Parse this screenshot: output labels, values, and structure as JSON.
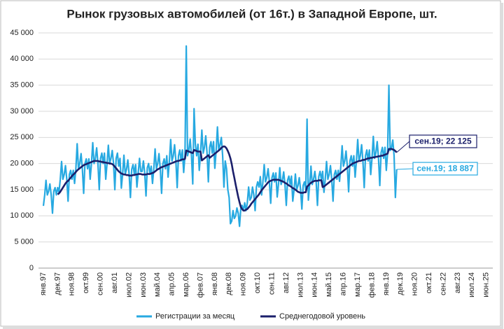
{
  "chart_data": {
    "type": "line",
    "title": "Рынок грузовых автомобилей (от 16т.) в Западной Европе, шт.",
    "categories": [
      "янв.97",
      null,
      null,
      null,
      null,
      null,
      null,
      null,
      null,
      null,
      null,
      "дек.97",
      null,
      null,
      null,
      null,
      null,
      null,
      null,
      null,
      null,
      null,
      "ноя.98",
      null,
      null,
      null,
      null,
      null,
      null,
      null,
      null,
      null,
      null,
      "окт.99",
      null,
      null,
      null,
      null,
      null,
      null,
      null,
      null,
      null,
      null,
      "сен.00",
      null,
      null,
      null,
      null,
      null,
      null,
      null,
      null,
      null,
      null,
      "авг.01",
      null,
      null,
      null,
      null,
      null,
      null,
      null,
      null,
      null,
      null,
      "июл.02",
      null,
      null,
      null,
      null,
      null,
      null,
      null,
      null,
      null,
      null,
      "июн.03",
      null,
      null,
      null,
      null,
      null,
      null,
      null,
      null,
      null,
      null,
      "май.04",
      null,
      null,
      null,
      null,
      null,
      null,
      null,
      null,
      null,
      null,
      "апр.05",
      null,
      null,
      null,
      null,
      null,
      null,
      null,
      null,
      null,
      null,
      "мар.06",
      null,
      null,
      null,
      null,
      null,
      null,
      null,
      null,
      null,
      null,
      "фев.07",
      null,
      null,
      null,
      null,
      null,
      null,
      null,
      null,
      null,
      null,
      "янв.08",
      null,
      null,
      null,
      null,
      null,
      null,
      null,
      null,
      null,
      null,
      "дек.08",
      null,
      null,
      null,
      null,
      null,
      null,
      null,
      null,
      null,
      null,
      "ноя.09",
      null,
      null,
      null,
      null,
      null,
      null,
      null,
      null,
      null,
      null,
      "окт.10",
      null,
      null,
      null,
      null,
      null,
      null,
      null,
      null,
      null,
      null,
      "сен.11",
      null,
      null,
      null,
      null,
      null,
      null,
      null,
      null,
      null,
      null,
      "авг.12",
      null,
      null,
      null,
      null,
      null,
      null,
      null,
      null,
      null,
      null,
      "июл.13",
      null,
      null,
      null,
      null,
      null,
      null,
      null,
      null,
      null,
      null,
      "июн.14",
      null,
      null,
      null,
      null,
      null,
      null,
      null,
      null,
      null,
      null,
      "май.15",
      null,
      null,
      null,
      null,
      null,
      null,
      null,
      null,
      null,
      null,
      "апр.16",
      null,
      null,
      null,
      null,
      null,
      null,
      null,
      null,
      null,
      null,
      "мар.17",
      null,
      null,
      null,
      null,
      null,
      null,
      null,
      null,
      null,
      null,
      "фев.18",
      null,
      null,
      null,
      null,
      null,
      null,
      null,
      null,
      null,
      null,
      "янв.19",
      null,
      null,
      null,
      null,
      null,
      null,
      null,
      null,
      null,
      null,
      "дек.19",
      null,
      null,
      null,
      null,
      null,
      null,
      null,
      null,
      null,
      null,
      "ноя.20",
      null,
      null,
      null,
      null,
      null,
      null,
      null,
      null,
      null,
      null,
      "окт.21",
      null,
      null,
      null,
      null,
      null,
      null,
      null,
      null,
      null,
      null,
      "сен.22",
      null,
      null,
      null,
      null,
      null,
      null,
      null,
      null,
      null,
      null,
      "авг.23",
      null,
      null,
      null,
      null,
      null,
      null,
      null,
      null,
      null,
      null,
      "июл.24",
      null,
      null,
      null,
      null,
      null,
      null,
      null,
      null,
      null,
      null,
      "июн.25",
      null,
      null,
      null,
      null,
      null
    ],
    "series": [
      {
        "name": "Регистрации за месяц",
        "color": "#27a9e1",
        "values": [
          11900,
          14000,
          16800,
          14000,
          14700,
          16100,
          14000,
          10500,
          14700,
          15400,
          14000,
          15400,
          14500,
          17000,
          20400,
          17000,
          17900,
          19600,
          17000,
          12800,
          17900,
          18700,
          17000,
          18700,
          16200,
          19000,
          23800,
          19000,
          20000,
          21900,
          19000,
          14300,
          20000,
          20900,
          19000,
          20900,
          17000,
          20000,
          24000,
          20000,
          21000,
          23000,
          20000,
          15000,
          21000,
          22000,
          20000,
          22000,
          17000,
          20000,
          23500,
          20000,
          21000,
          22500,
          20000,
          15000,
          21000,
          22000,
          19500,
          21000,
          15300,
          18000,
          21600,
          18000,
          18900,
          20700,
          18000,
          13500,
          18900,
          19800,
          18000,
          19800,
          15500,
          18200,
          21000,
          18500,
          18500,
          20500,
          18200,
          13800,
          19200,
          20000,
          18000,
          19500,
          16200,
          19000,
          22800,
          19000,
          20000,
          21900,
          19000,
          14300,
          20000,
          20900,
          19000,
          21500,
          17400,
          20500,
          24600,
          20500,
          21500,
          23600,
          20500,
          15400,
          21500,
          22600,
          20500,
          22600,
          18300,
          21500,
          42500,
          21500,
          22600,
          24700,
          21500,
          16100,
          30500,
          23700,
          21500,
          23700,
          18700,
          22000,
          26400,
          22000,
          23100,
          25300,
          22000,
          16500,
          23100,
          24200,
          22000,
          24200,
          19100,
          22500,
          27000,
          22500,
          23600,
          25000,
          21500,
          15500,
          20500,
          19000,
          15000,
          13500,
          8500,
          9000,
          11000,
          9500,
          10000,
          11500,
          10500,
          8000,
          11500,
          12000,
          11000,
          12500,
          11000,
          12500,
          15500,
          13000,
          13500,
          15500,
          14000,
          11000,
          15500,
          16500,
          15500,
          17500,
          14000,
          16500,
          19800,
          16500,
          17300,
          19000,
          16500,
          12400,
          17300,
          18200,
          16500,
          18200,
          13600,
          16000,
          19200,
          16000,
          16800,
          18400,
          16000,
          12000,
          16800,
          17600,
          16000,
          17600,
          12800,
          15000,
          18000,
          15000,
          15800,
          17300,
          15000,
          11300,
          15800,
          16500,
          15000,
          28500,
          13000,
          16000,
          19500,
          16000,
          17000,
          18500,
          16500,
          12000,
          17500,
          18500,
          17000,
          18500,
          14500,
          17000,
          20400,
          17000,
          17900,
          19600,
          17000,
          12800,
          17900,
          18700,
          17000,
          18700,
          16600,
          19500,
          23400,
          19500,
          20500,
          22400,
          19500,
          14600,
          20500,
          21500,
          19500,
          21500,
          17400,
          20500,
          24600,
          20500,
          21500,
          23600,
          20500,
          15400,
          21500,
          22600,
          20500,
          22600,
          17900,
          21000,
          25200,
          21000,
          22100,
          24200,
          21000,
          15800,
          22100,
          23100,
          21000,
          23100,
          18700,
          22000,
          35000,
          22500,
          23000,
          24500,
          21500,
          13500,
          18887,
          null,
          null,
          null,
          null,
          null,
          null,
          null,
          null,
          null,
          null,
          null,
          null,
          null,
          null,
          null,
          null,
          null,
          null,
          null,
          null,
          null,
          null,
          null,
          null,
          null,
          null,
          null,
          null,
          null,
          null,
          null,
          null,
          null,
          null,
          null,
          null,
          null,
          null,
          null,
          null,
          null,
          null,
          null,
          null,
          null,
          null,
          null,
          null,
          null,
          null,
          null,
          null,
          null,
          null,
          null,
          null,
          null,
          null,
          null,
          null,
          null,
          null,
          null,
          null,
          null,
          null,
          null,
          null,
          null,
          null,
          null,
          null,
          null,
          null
        ]
      },
      {
        "name": "Среднегодовой уровень",
        "color": "#1b1f6b",
        "values": [
          null,
          null,
          null,
          null,
          null,
          null,
          null,
          null,
          null,
          null,
          null,
          14100,
          14300,
          14600,
          15000,
          15400,
          15800,
          16200,
          16500,
          16700,
          17000,
          17300,
          17600,
          17900,
          18100,
          18400,
          18700,
          18900,
          19100,
          19300,
          19500,
          19700,
          19800,
          19900,
          20000,
          20100,
          20200,
          20300,
          20400,
          20500,
          20500,
          20500,
          20500,
          20400,
          20400,
          20300,
          20300,
          20200,
          20200,
          20100,
          20100,
          20000,
          20000,
          19900,
          19700,
          19400,
          19100,
          18800,
          18500,
          18300,
          18100,
          18000,
          17900,
          17900,
          17800,
          17800,
          17700,
          17700,
          17700,
          17800,
          17800,
          17900,
          17900,
          18000,
          18000,
          18000,
          17900,
          17900,
          17900,
          17900,
          18000,
          18000,
          18000,
          18100,
          18200,
          18300,
          18500,
          18700,
          18900,
          19000,
          19200,
          19300,
          19400,
          19500,
          19600,
          19700,
          19800,
          19900,
          20000,
          20100,
          20200,
          20300,
          20400,
          20500,
          20500,
          20600,
          20700,
          20800,
          20800,
          20900,
          22500,
          22400,
          22300,
          22200,
          22100,
          22000,
          22600,
          22500,
          22400,
          22300,
          22300,
          22300,
          20600,
          20800,
          21000,
          21200,
          21400,
          21600,
          21100,
          21300,
          21500,
          21700,
          21900,
          22100,
          22300,
          22500,
          22700,
          23000,
          23200,
          23300,
          23200,
          22900,
          22400,
          21800,
          21000,
          19900,
          18500,
          17300,
          16000,
          14800,
          13600,
          12600,
          11700,
          11300,
          11000,
          11000,
          11200,
          11300,
          11600,
          11900,
          12300,
          12600,
          12900,
          13200,
          13500,
          13800,
          14100,
          14500,
          14900,
          15200,
          15500,
          15800,
          16100,
          16400,
          16600,
          16700,
          16800,
          16900,
          16900,
          16900,
          16900,
          16900,
          16800,
          16700,
          16600,
          16500,
          16300,
          16200,
          16000,
          15800,
          15700,
          15500,
          15300,
          15200,
          15000,
          14800,
          14600,
          14500,
          14400,
          14400,
          14400,
          14500,
          14500,
          15600,
          15800,
          16100,
          16300,
          16500,
          16600,
          16700,
          16700,
          16700,
          16800,
          16800,
          16800,
          15500,
          15600,
          15800,
          16000,
          16200,
          16400,
          16600,
          16800,
          17000,
          17200,
          17400,
          17600,
          17800,
          18000,
          18200,
          18400,
          18600,
          18800,
          19000,
          19200,
          19400,
          19600,
          19800,
          20000,
          20100,
          20200,
          20300,
          20400,
          20500,
          20500,
          20600,
          20700,
          20700,
          20800,
          20900,
          21000,
          21000,
          21100,
          21100,
          21200,
          21200,
          21300,
          21300,
          21400,
          21400,
          21500,
          21500,
          21600,
          21700,
          21800,
          21900,
          22800,
          22800,
          22800,
          22700,
          22600,
          22400,
          22125,
          null,
          null,
          null,
          null,
          null,
          null,
          null,
          null,
          null,
          null,
          null,
          null,
          null,
          null,
          null,
          null,
          null,
          null,
          null,
          null,
          null,
          null,
          null,
          null,
          null,
          null,
          null,
          null,
          null,
          null,
          null,
          null,
          null,
          null,
          null,
          null,
          null,
          null,
          null,
          null,
          null,
          null,
          null,
          null,
          null,
          null,
          null,
          null,
          null,
          null,
          null,
          null,
          null,
          null,
          null,
          null,
          null,
          null,
          null,
          null,
          null,
          null,
          null,
          null,
          null,
          null,
          null,
          null,
          null,
          null,
          null,
          null,
          null,
          null
        ]
      }
    ],
    "annotations": [
      {
        "text": "сен.19;  22 125",
        "series": 1,
        "index": 272
      },
      {
        "text": "сен.19; 18 887",
        "series": 0,
        "index": 272
      }
    ],
    "ylim": [
      0,
      45000
    ],
    "yticks": [
      0,
      {
        "value": 5000,
        "label": "5 000"
      },
      {
        "value": 10000,
        "label": "10 000"
      },
      {
        "value": 15000,
        "label": "15 000"
      },
      {
        "value": 20000,
        "label": "20 000"
      },
      {
        "value": 25000,
        "label": "25 000"
      },
      {
        "value": 30000,
        "label": "30 000"
      },
      {
        "value": 35000,
        "label": "35 000"
      },
      {
        "value": 40000,
        "label": "40 000"
      },
      {
        "value": 45000,
        "label": "45 000"
      }
    ],
    "grid": true,
    "legend": "bottom"
  }
}
